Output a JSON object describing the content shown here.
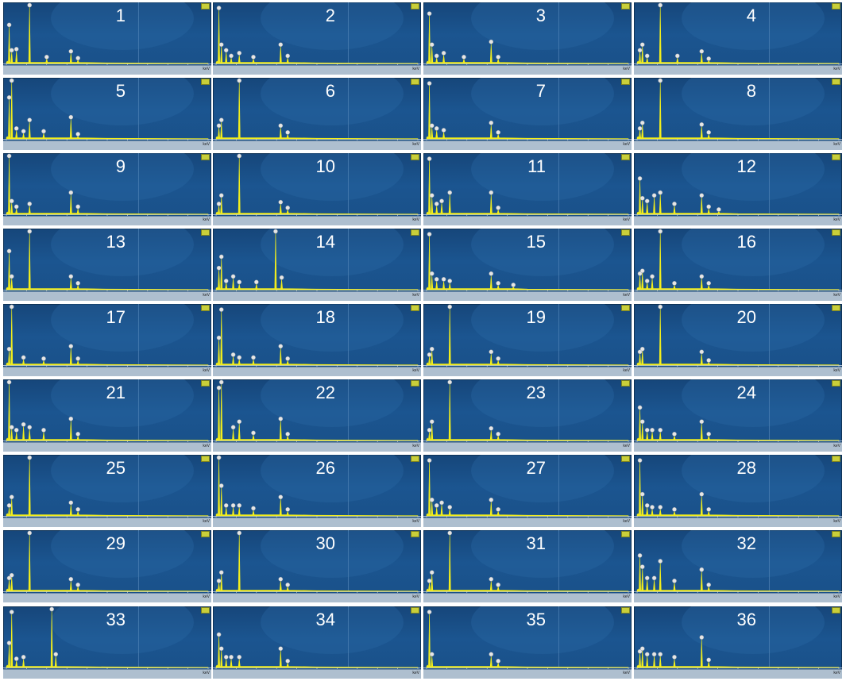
{
  "axis": {
    "unit": "keV",
    "xlim": [
      0,
      20
    ],
    "ticks": [
      "0",
      "2",
      "4",
      "6",
      "8",
      "10",
      "12",
      "14",
      "16",
      "18",
      "20"
    ]
  },
  "colors": {
    "background": "#1b5590",
    "trace": "#f2ee1c",
    "marker": "#e6e6e6"
  },
  "chart_data": [
    {
      "type": "line",
      "label": "1",
      "peaks": [
        [
          0.28,
          0.65
        ],
        [
          0.53,
          0.2
        ],
        [
          1.0,
          0.22
        ],
        [
          2.3,
          1.0
        ],
        [
          4.0,
          0.08
        ],
        [
          6.4,
          0.18
        ],
        [
          7.1,
          0.06
        ]
      ]
    },
    {
      "type": "line",
      "label": "2",
      "peaks": [
        [
          0.28,
          0.95
        ],
        [
          0.53,
          0.3
        ],
        [
          1.0,
          0.2
        ],
        [
          1.5,
          0.1
        ],
        [
          2.3,
          0.15
        ],
        [
          3.7,
          0.08
        ],
        [
          6.4,
          0.3
        ],
        [
          7.1,
          0.1
        ]
      ]
    },
    {
      "type": "line",
      "label": "3",
      "peaks": [
        [
          0.28,
          0.85
        ],
        [
          0.53,
          0.3
        ],
        [
          1.0,
          0.1
        ],
        [
          1.7,
          0.15
        ],
        [
          3.7,
          0.08
        ],
        [
          6.4,
          0.35
        ],
        [
          7.1,
          0.08
        ]
      ]
    },
    {
      "type": "line",
      "label": "4",
      "peaks": [
        [
          0.28,
          0.2
        ],
        [
          0.53,
          0.3
        ],
        [
          1.0,
          0.1
        ],
        [
          2.3,
          1.0
        ],
        [
          4.0,
          0.1
        ],
        [
          6.4,
          0.18
        ],
        [
          7.1,
          0.05
        ]
      ]
    },
    {
      "type": "line",
      "label": "5",
      "peaks": [
        [
          0.28,
          0.7
        ],
        [
          0.53,
          1.0
        ],
        [
          1.0,
          0.15
        ],
        [
          1.7,
          0.1
        ],
        [
          2.3,
          0.3
        ],
        [
          3.7,
          0.1
        ],
        [
          6.4,
          0.35
        ],
        [
          7.1,
          0.05
        ]
      ]
    },
    {
      "type": "line",
      "label": "6",
      "peaks": [
        [
          0.28,
          0.2
        ],
        [
          0.53,
          0.3
        ],
        [
          2.3,
          1.0
        ],
        [
          6.4,
          0.2
        ],
        [
          7.1,
          0.08
        ]
      ]
    },
    {
      "type": "line",
      "label": "7",
      "peaks": [
        [
          0.28,
          0.95
        ],
        [
          0.53,
          0.2
        ],
        [
          1.0,
          0.15
        ],
        [
          1.7,
          0.12
        ],
        [
          6.4,
          0.25
        ],
        [
          7.1,
          0.08
        ]
      ]
    },
    {
      "type": "line",
      "label": "8",
      "peaks": [
        [
          0.28,
          0.15
        ],
        [
          0.53,
          0.25
        ],
        [
          2.3,
          1.0
        ],
        [
          6.4,
          0.22
        ],
        [
          7.1,
          0.08
        ]
      ]
    },
    {
      "type": "line",
      "label": "9",
      "peaks": [
        [
          0.28,
          1.0
        ],
        [
          0.53,
          0.2
        ],
        [
          1.0,
          0.1
        ],
        [
          2.3,
          0.15
        ],
        [
          6.4,
          0.35
        ],
        [
          7.1,
          0.1
        ]
      ]
    },
    {
      "type": "line",
      "label": "10",
      "peaks": [
        [
          0.28,
          0.15
        ],
        [
          0.53,
          0.3
        ],
        [
          2.3,
          1.0
        ],
        [
          6.4,
          0.18
        ],
        [
          7.1,
          0.08
        ]
      ]
    },
    {
      "type": "line",
      "label": "11",
      "peaks": [
        [
          0.28,
          0.95
        ],
        [
          0.53,
          0.3
        ],
        [
          1.0,
          0.15
        ],
        [
          1.5,
          0.2
        ],
        [
          2.3,
          0.35
        ],
        [
          6.4,
          0.35
        ],
        [
          7.1,
          0.08
        ]
      ]
    },
    {
      "type": "line",
      "label": "12",
      "peaks": [
        [
          0.28,
          0.6
        ],
        [
          0.53,
          0.25
        ],
        [
          1.0,
          0.2
        ],
        [
          1.7,
          0.3
        ],
        [
          2.3,
          0.35
        ],
        [
          3.7,
          0.15
        ],
        [
          6.4,
          0.3
        ],
        [
          7.1,
          0.1
        ],
        [
          8.1,
          0.05
        ]
      ]
    },
    {
      "type": "line",
      "label": "13",
      "peaks": [
        [
          0.28,
          0.65
        ],
        [
          0.53,
          0.2
        ],
        [
          2.3,
          1.0
        ],
        [
          6.4,
          0.2
        ],
        [
          7.1,
          0.08
        ]
      ]
    },
    {
      "type": "line",
      "label": "14",
      "peaks": [
        [
          0.28,
          0.35
        ],
        [
          0.53,
          0.55
        ],
        [
          1.0,
          0.12
        ],
        [
          1.7,
          0.2
        ],
        [
          2.3,
          0.1
        ],
        [
          4.0,
          0.1
        ],
        [
          5.9,
          1.0
        ],
        [
          6.5,
          0.18
        ]
      ]
    },
    {
      "type": "line",
      "label": "15",
      "peaks": [
        [
          0.28,
          0.95
        ],
        [
          0.53,
          0.25
        ],
        [
          1.0,
          0.15
        ],
        [
          1.7,
          0.15
        ],
        [
          2.3,
          0.12
        ],
        [
          6.4,
          0.25
        ],
        [
          7.1,
          0.08
        ],
        [
          8.6,
          0.05
        ]
      ]
    },
    {
      "type": "line",
      "label": "16",
      "peaks": [
        [
          0.28,
          0.25
        ],
        [
          0.53,
          0.3
        ],
        [
          1.0,
          0.12
        ],
        [
          1.5,
          0.2
        ],
        [
          2.3,
          1.0
        ],
        [
          3.7,
          0.08
        ],
        [
          6.4,
          0.2
        ],
        [
          7.1,
          0.08
        ]
      ]
    },
    {
      "type": "line",
      "label": "17",
      "peaks": [
        [
          0.28,
          0.25
        ],
        [
          0.53,
          1.0
        ],
        [
          1.7,
          0.1
        ],
        [
          3.7,
          0.08
        ],
        [
          6.4,
          0.3
        ],
        [
          7.1,
          0.08
        ]
      ]
    },
    {
      "type": "line",
      "label": "18",
      "peaks": [
        [
          0.28,
          0.45
        ],
        [
          0.53,
          0.95
        ],
        [
          1.7,
          0.15
        ],
        [
          2.3,
          0.1
        ],
        [
          3.7,
          0.1
        ],
        [
          6.4,
          0.3
        ],
        [
          7.1,
          0.08
        ]
      ]
    },
    {
      "type": "line",
      "label": "19",
      "peaks": [
        [
          0.28,
          0.15
        ],
        [
          0.53,
          0.25
        ],
        [
          2.3,
          1.0
        ],
        [
          6.4,
          0.2
        ],
        [
          7.1,
          0.08
        ]
      ]
    },
    {
      "type": "line",
      "label": "20",
      "peaks": [
        [
          0.28,
          0.2
        ],
        [
          0.53,
          0.25
        ],
        [
          2.3,
          1.0
        ],
        [
          6.4,
          0.2
        ],
        [
          7.1,
          0.05
        ]
      ]
    },
    {
      "type": "line",
      "label": "21",
      "peaks": [
        [
          0.28,
          1.0
        ],
        [
          0.53,
          0.2
        ],
        [
          1.0,
          0.15
        ],
        [
          1.7,
          0.25
        ],
        [
          2.3,
          0.2
        ],
        [
          3.7,
          0.15
        ],
        [
          6.4,
          0.35
        ],
        [
          7.1,
          0.08
        ]
      ]
    },
    {
      "type": "line",
      "label": "22",
      "peaks": [
        [
          0.28,
          0.9
        ],
        [
          0.53,
          1.0
        ],
        [
          1.7,
          0.2
        ],
        [
          2.3,
          0.3
        ],
        [
          3.7,
          0.1
        ],
        [
          6.4,
          0.35
        ],
        [
          7.1,
          0.08
        ]
      ]
    },
    {
      "type": "line",
      "label": "23",
      "peaks": [
        [
          0.28,
          0.15
        ],
        [
          0.53,
          0.3
        ],
        [
          2.3,
          1.0
        ],
        [
          6.4,
          0.18
        ],
        [
          7.1,
          0.08
        ]
      ]
    },
    {
      "type": "line",
      "label": "24",
      "peaks": [
        [
          0.28,
          0.55
        ],
        [
          0.53,
          0.3
        ],
        [
          1.0,
          0.15
        ],
        [
          1.5,
          0.15
        ],
        [
          2.3,
          0.15
        ],
        [
          3.7,
          0.08
        ],
        [
          6.4,
          0.3
        ],
        [
          7.1,
          0.08
        ]
      ]
    },
    {
      "type": "line",
      "label": "25",
      "peaks": [
        [
          0.28,
          0.15
        ],
        [
          0.53,
          0.3
        ],
        [
          2.3,
          1.0
        ],
        [
          6.4,
          0.2
        ],
        [
          7.1,
          0.08
        ]
      ]
    },
    {
      "type": "line",
      "label": "26",
      "peaks": [
        [
          0.28,
          1.0
        ],
        [
          0.53,
          0.5
        ],
        [
          1.0,
          0.15
        ],
        [
          1.7,
          0.15
        ],
        [
          2.3,
          0.15
        ],
        [
          3.7,
          0.1
        ],
        [
          6.4,
          0.3
        ],
        [
          7.1,
          0.08
        ]
      ]
    },
    {
      "type": "line",
      "label": "27",
      "peaks": [
        [
          0.28,
          0.95
        ],
        [
          0.53,
          0.25
        ],
        [
          1.0,
          0.15
        ],
        [
          1.5,
          0.2
        ],
        [
          2.3,
          0.12
        ],
        [
          6.4,
          0.25
        ],
        [
          7.1,
          0.08
        ]
      ]
    },
    {
      "type": "line",
      "label": "28",
      "peaks": [
        [
          0.28,
          0.95
        ],
        [
          0.53,
          0.35
        ],
        [
          1.0,
          0.15
        ],
        [
          1.5,
          0.12
        ],
        [
          2.3,
          0.12
        ],
        [
          3.7,
          0.08
        ],
        [
          6.4,
          0.35
        ],
        [
          7.1,
          0.08
        ]
      ]
    },
    {
      "type": "line",
      "label": "29",
      "peaks": [
        [
          0.28,
          0.2
        ],
        [
          0.53,
          0.25
        ],
        [
          2.3,
          1.0
        ],
        [
          6.4,
          0.18
        ],
        [
          7.1,
          0.08
        ]
      ]
    },
    {
      "type": "line",
      "label": "30",
      "peaks": [
        [
          0.28,
          0.15
        ],
        [
          0.53,
          0.3
        ],
        [
          2.3,
          1.0
        ],
        [
          6.4,
          0.18
        ],
        [
          7.1,
          0.08
        ]
      ]
    },
    {
      "type": "line",
      "label": "31",
      "peaks": [
        [
          0.28,
          0.15
        ],
        [
          0.53,
          0.3
        ],
        [
          2.3,
          1.0
        ],
        [
          6.4,
          0.18
        ],
        [
          7.1,
          0.08
        ]
      ]
    },
    {
      "type": "line",
      "label": "32",
      "peaks": [
        [
          0.28,
          0.6
        ],
        [
          0.53,
          0.4
        ],
        [
          1.0,
          0.2
        ],
        [
          1.7,
          0.2
        ],
        [
          2.3,
          0.5
        ],
        [
          3.7,
          0.15
        ],
        [
          6.4,
          0.35
        ],
        [
          7.1,
          0.08
        ]
      ]
    },
    {
      "type": "line",
      "label": "33",
      "peaks": [
        [
          0.28,
          0.4
        ],
        [
          0.53,
          0.95
        ],
        [
          1.0,
          0.12
        ],
        [
          1.7,
          0.15
        ],
        [
          4.5,
          1.0
        ],
        [
          4.9,
          0.2
        ]
      ]
    },
    {
      "type": "line",
      "label": "34",
      "peaks": [
        [
          0.28,
          0.55
        ],
        [
          0.53,
          0.3
        ],
        [
          1.0,
          0.15
        ],
        [
          1.5,
          0.15
        ],
        [
          2.3,
          0.15
        ],
        [
          6.4,
          0.3
        ],
        [
          7.1,
          0.08
        ]
      ]
    },
    {
      "type": "line",
      "label": "35",
      "peaks": [
        [
          0.28,
          0.95
        ],
        [
          0.53,
          0.2
        ],
        [
          6.4,
          0.2
        ],
        [
          7.1,
          0.08
        ]
      ]
    },
    {
      "type": "line",
      "label": "36",
      "peaks": [
        [
          0.28,
          0.25
        ],
        [
          0.53,
          0.3
        ],
        [
          1.0,
          0.2
        ],
        [
          1.7,
          0.2
        ],
        [
          2.3,
          0.2
        ],
        [
          3.7,
          0.15
        ],
        [
          6.4,
          0.5
        ],
        [
          7.1,
          0.1
        ]
      ]
    }
  ]
}
